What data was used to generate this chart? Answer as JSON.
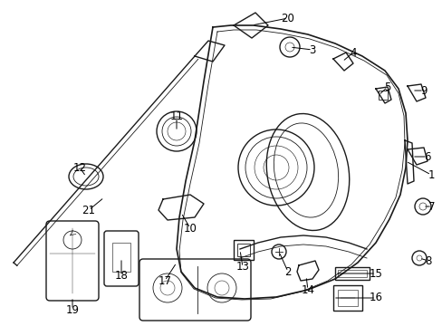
{
  "background_color": "#ffffff",
  "line_color": "#1a1a1a",
  "fig_width": 4.89,
  "fig_height": 3.6,
  "dpi": 100,
  "font_size": 8.5
}
